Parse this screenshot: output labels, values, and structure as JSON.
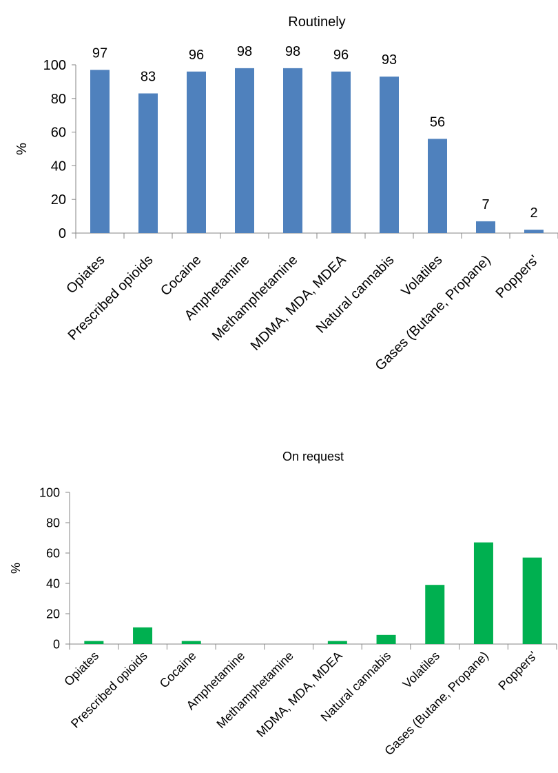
{
  "chart_data": [
    {
      "type": "bar",
      "title": "Routinely",
      "ylabel": "%",
      "xlabel": "",
      "ylim": [
        0,
        100
      ],
      "yticks": [
        0,
        20,
        40,
        60,
        80,
        100
      ],
      "categories": [
        "Opiates",
        "Prescribed opioids",
        "Cocaine",
        "Amphetamine",
        "Methamphetamine",
        "MDMA, MDA, MDEA",
        "Natural cannabis",
        "Volatiles",
        "Gases (Butane, Propane)",
        "Poppers'"
      ],
      "values": [
        97,
        83,
        96,
        98,
        98,
        96,
        93,
        56,
        7,
        2
      ],
      "data_labels": true,
      "color": "#4F81BD",
      "grid": false,
      "legend": "none"
    },
    {
      "type": "bar",
      "title": "On request",
      "ylabel": "%",
      "xlabel": "",
      "ylim": [
        0,
        100
      ],
      "yticks": [
        0,
        20,
        40,
        60,
        80,
        100
      ],
      "categories": [
        "Opiates",
        "Prescribed opioids",
        "Cocaine",
        "Amphetamine",
        "Methamphetamine",
        "MDMA, MDA, MDEA",
        "Natural cannabis",
        "Volatiles",
        "Gases (Butane, Propane)",
        "Poppers'"
      ],
      "values": [
        2,
        11,
        2,
        0,
        0,
        2,
        6,
        39,
        67,
        57
      ],
      "data_labels": false,
      "color": "#00B050",
      "grid": false,
      "legend": "none"
    }
  ]
}
